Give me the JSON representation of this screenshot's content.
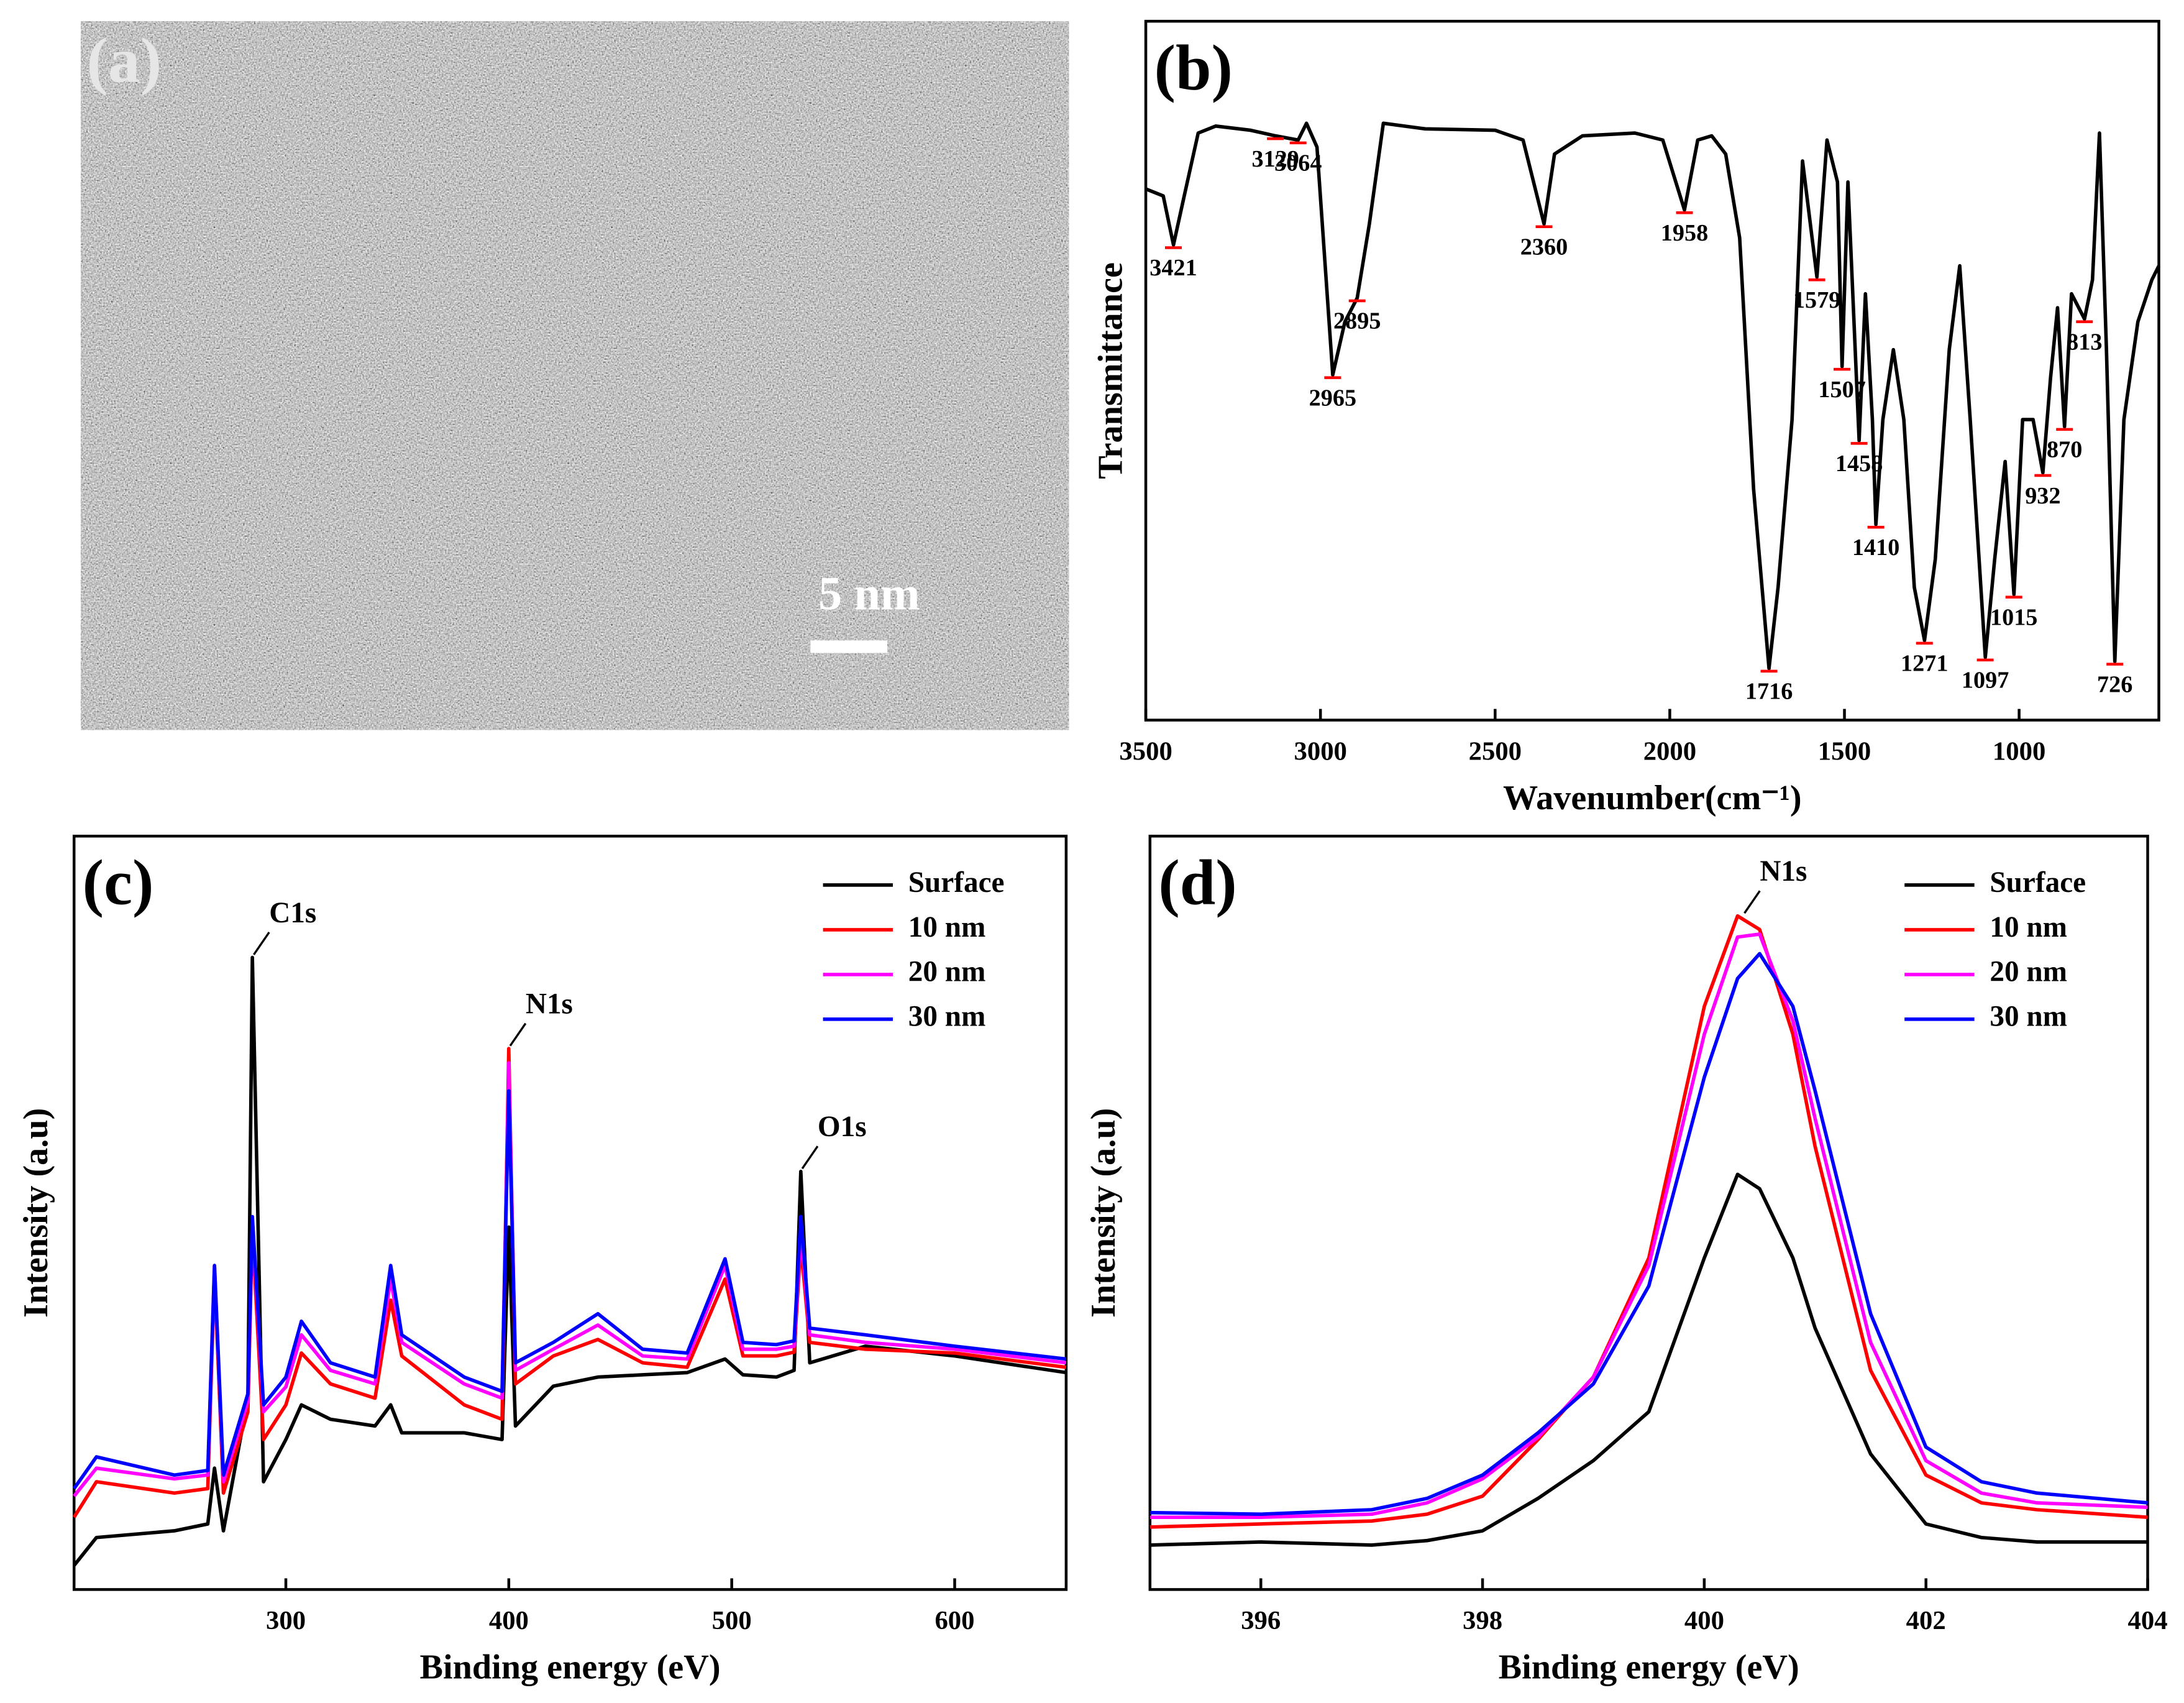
{
  "image_panel": {
    "label": "(a)",
    "scale_bar": "5 nm"
  },
  "chart_data": [
    {
      "type": "line",
      "panel_label": "(b)",
      "x_label": "Wavenumber(cm⁻¹)",
      "y_label": "Transmittance",
      "xlim": [
        3500,
        600
      ],
      "xticks": [
        3500,
        3000,
        2500,
        2000,
        1500,
        1000
      ],
      "ylim": [
        0,
        100
      ],
      "x": [
        3500,
        3450,
        3421,
        3390,
        3350,
        3300,
        3200,
        3129,
        3064,
        3040,
        3010,
        2965,
        2930,
        2895,
        2860,
        2820,
        2700,
        2500,
        2420,
        2360,
        2330,
        2250,
        2100,
        2020,
        1958,
        1920,
        1880,
        1840,
        1800,
        1760,
        1716,
        1690,
        1650,
        1620,
        1579,
        1550,
        1520,
        1507,
        1490,
        1458,
        1440,
        1420,
        1410,
        1390,
        1360,
        1330,
        1300,
        1271,
        1240,
        1200,
        1170,
        1140,
        1097,
        1070,
        1040,
        1015,
        990,
        960,
        932,
        910,
        890,
        870,
        850,
        813,
        790,
        770,
        750,
        726,
        700,
        660,
        620,
        600
      ],
      "series": [
        {
          "color": "#000000",
          "values": [
            76,
            75,
            68,
            75,
            84,
            85,
            84.4,
            83.6,
            83,
            85.4,
            82,
            49.4,
            57,
            60.4,
            71,
            85.4,
            84.6,
            84.4,
            83,
            71,
            81,
            83.6,
            84,
            83,
            73,
            83,
            83.6,
            81,
            69,
            33,
            7.4,
            19,
            43,
            80,
            63.4,
            83,
            77,
            50.6,
            77,
            40,
            61,
            43,
            28,
            43,
            53,
            43,
            19,
            11.4,
            23,
            53,
            65,
            43,
            9,
            23,
            37,
            18,
            43,
            43,
            35.4,
            49,
            59,
            42,
            61,
            57.4,
            63,
            84,
            53,
            8.4,
            43,
            57,
            63,
            65
          ]
        }
      ],
      "peaks": [
        3421,
        3129,
        3064,
        2965,
        2895,
        2360,
        1958,
        1716,
        1579,
        1507,
        1458,
        1410,
        1271,
        1097,
        1015,
        932,
        870,
        813,
        726
      ],
      "peak_color": "#ff0000"
    },
    {
      "type": "line",
      "panel_label": "(c)",
      "x_label": "Binding energy (eV)",
      "y_label": "Intensity (a.u)",
      "xlim": [
        205,
        650
      ],
      "xticks": [
        300,
        400,
        500,
        600
      ],
      "ylim": [
        0,
        100
      ],
      "legend": "upper right",
      "x": [
        205,
        215,
        250,
        265,
        268,
        272,
        283,
        285,
        290,
        300,
        307,
        320,
        340,
        347,
        352,
        380,
        397,
        400,
        403,
        420,
        440,
        460,
        480,
        497,
        505,
        520,
        528,
        531,
        535,
        560,
        600,
        650
      ],
      "series": [
        {
          "name": "Surface",
          "color": "#000000",
          "values": [
            3.2,
            6.9,
            7.8,
            8.7,
            16.1,
            7.8,
            25.4,
            83.9,
            14.3,
            19.9,
            24.5,
            22.6,
            21.7,
            24.5,
            20.8,
            20.8,
            19.9,
            48.1,
            21.7,
            27,
            28.2,
            28.5,
            28.8,
            30.6,
            28.5,
            28.2,
            29.1,
            55.5,
            30.1,
            32.3,
            31,
            28.8
          ]
        },
        {
          "name": "10 nm",
          "color": "#ff0000",
          "values": [
            9.6,
            14.3,
            12.8,
            13.4,
            42.1,
            12.8,
            23.6,
            47.7,
            19.9,
            24.5,
            31.4,
            27.3,
            25.4,
            38.4,
            31,
            24.5,
            22.6,
            71.8,
            27.3,
            31,
            33.2,
            30.1,
            29.5,
            41.2,
            31,
            31,
            31.5,
            45.8,
            32.8,
            31.9,
            31.4,
            29.5
          ]
        },
        {
          "name": "20 nm",
          "color": "#ff00ff",
          "values": [
            12.4,
            16.1,
            14.7,
            15.2,
            43,
            14.3,
            25,
            48.6,
            23.6,
            26.9,
            33.8,
            29.1,
            27.3,
            41.2,
            32.8,
            27.3,
            25.4,
            69.9,
            29.1,
            31.9,
            35.1,
            31,
            30.6,
            43,
            31.9,
            31.9,
            32.3,
            47.7,
            33.8,
            32.8,
            31.9,
            30.1
          ]
        },
        {
          "name": "30 nm",
          "color": "#0000ff",
          "values": [
            13.4,
            17.6,
            15.2,
            15.8,
            43,
            15.2,
            26,
            49.5,
            24.5,
            28.2,
            35.6,
            30.1,
            28.2,
            43,
            33.8,
            28.2,
            26.3,
            66.2,
            30.1,
            32.8,
            36.6,
            31.9,
            31.4,
            43.9,
            32.8,
            32.5,
            33,
            49.5,
            34.7,
            33.8,
            32.3,
            30.6
          ]
        }
      ],
      "annotations": [
        {
          "text": "C1s",
          "x": 285
        },
        {
          "text": "N1s",
          "x": 400
        },
        {
          "text": "O1s",
          "x": 531
        }
      ]
    },
    {
      "type": "line",
      "panel_label": "(d)",
      "x_label": "Binding energy (eV)",
      "y_label": "Intensity (a.u)",
      "xlim": [
        395,
        404
      ],
      "xticks": [
        396,
        398,
        400,
        402,
        404
      ],
      "ylim": [
        0,
        100
      ],
      "legend": "upper right",
      "x": [
        395,
        396,
        397,
        397.5,
        398,
        398.5,
        399,
        399.5,
        400,
        400.3,
        400.5,
        400.8,
        401,
        401.5,
        402,
        402.5,
        403,
        404
      ],
      "series": [
        {
          "name": "Surface",
          "color": "#000000",
          "values": [
            5.9,
            6.3,
            5.9,
            6.5,
            7.8,
            12.1,
            17.1,
            23.6,
            44,
            55.1,
            53.2,
            44,
            34.7,
            18,
            8.7,
            6.9,
            6.3,
            6.3
          ]
        },
        {
          "name": "10 nm",
          "color": "#ff0000",
          "values": [
            8.3,
            8.7,
            9.1,
            10,
            12.4,
            19.9,
            28.2,
            44,
            77.4,
            89.4,
            87.6,
            73.7,
            58.8,
            29.1,
            15.2,
            11.5,
            10.6,
            9.6
          ]
        },
        {
          "name": "20 nm",
          "color": "#ff00ff",
          "values": [
            9.6,
            9.6,
            10,
            11.5,
            14.7,
            20.2,
            28.2,
            43,
            73.7,
            86.6,
            87,
            75.5,
            62.5,
            32.8,
            17.1,
            12.8,
            11.5,
            10.9
          ]
        },
        {
          "name": "30 nm",
          "color": "#0000ff",
          "values": [
            10.2,
            10,
            10.6,
            12.1,
            15.2,
            20.8,
            27.3,
            40.3,
            68,
            81.1,
            84.4,
            77.4,
            66.2,
            36.6,
            18.9,
            14.3,
            12.8,
            11.5
          ]
        }
      ],
      "annotations": [
        {
          "text": "N1s",
          "x": 400.35
        }
      ]
    }
  ]
}
